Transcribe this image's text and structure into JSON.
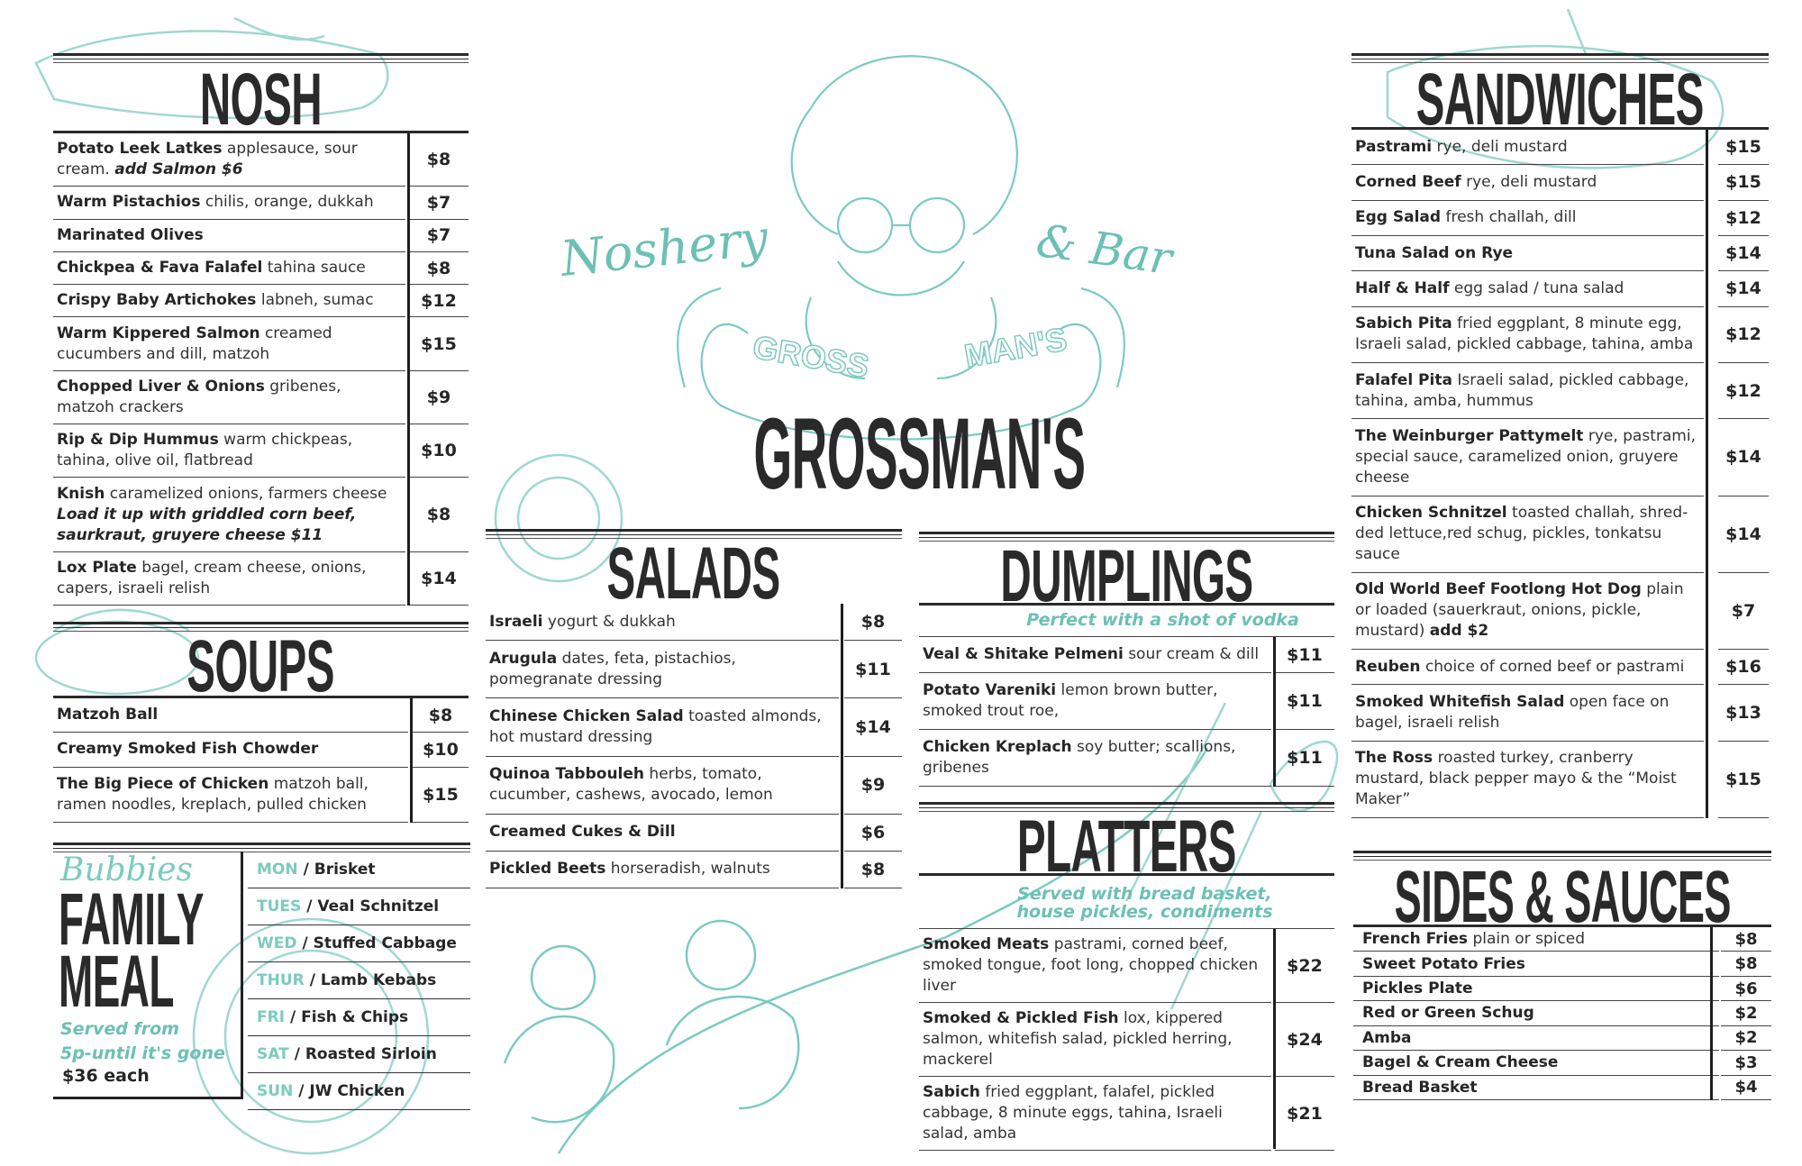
{
  "brand": {
    "name": "GROSSMAN'S",
    "script_left": "Noshery",
    "script_right": "& Bar",
    "plate_left": "GROSS",
    "plate_right": "MAN'S"
  },
  "colors": {
    "accent": "#6cc0b4",
    "text": "#262626",
    "rule": "#2a2a2a"
  },
  "nosh": {
    "title": "NOSH",
    "items": [
      {
        "name": "Potato Leek Latkes",
        "desc": "applesauce, sour cream.",
        "note": "add Salmon $6",
        "price": "$8"
      },
      {
        "name": "Warm Pistachios",
        "desc": "chilis, orange, dukkah",
        "price": "$7"
      },
      {
        "name": "Marinated Olives",
        "price": "$7"
      },
      {
        "name": "Chickpea & Fava Falafel",
        "desc": "tahina sauce",
        "price": "$8"
      },
      {
        "name": "Crispy Baby Artichokes",
        "desc": "labneh, sumac",
        "price": "$12"
      },
      {
        "name": "Warm Kippered Salmon",
        "desc": "creamed cucumbers and dill, matzoh",
        "price": "$15"
      },
      {
        "name": "Chopped Liver & Onions",
        "desc": "gribenes, matzoh crackers",
        "price": "$9"
      },
      {
        "name": "Rip & Dip Hummus",
        "desc": "warm chickpeas, tahina, olive oil, flatbread",
        "price": "$10"
      },
      {
        "name": "Knish",
        "desc": "caramelized onions, farmers cheese",
        "note": "Load it up with griddled corn beef, saurkraut, gruyere cheese $11",
        "price": "$8"
      },
      {
        "name": "Lox Plate",
        "desc": "bagel, cream cheese, onions, capers, israeli relish",
        "price": "$14"
      }
    ]
  },
  "soups": {
    "title": "SOUPS",
    "items": [
      {
        "name": "Matzoh Ball",
        "price": "$8"
      },
      {
        "name": "Creamy Smoked Fish Chowder",
        "price": "$10"
      },
      {
        "name": "The Big Piece of Chicken",
        "desc": "matzoh ball, ramen noodles, kreplach, pulled chicken",
        "price": "$15"
      }
    ]
  },
  "family_meal": {
    "script": "Bubbies",
    "title_line1": "FAMILY",
    "title_line2": "MEAL",
    "served_line1": "Served from",
    "served_line2": "5p-until  it's gone",
    "price": "$36 each",
    "days": [
      {
        "day": "MON",
        "dish": "/ Brisket"
      },
      {
        "day": "TUES",
        "dish": "/ Veal Schnitzel"
      },
      {
        "day": "WED",
        "dish": "/ Stuffed Cabbage"
      },
      {
        "day": "THUR",
        "dish": "/ Lamb Kebabs"
      },
      {
        "day": "FRI",
        "dish": "/ Fish & Chips"
      },
      {
        "day": "SAT",
        "dish": "/ Roasted Sirloin"
      },
      {
        "day": "SUN",
        "dish": "/ JW Chicken"
      }
    ]
  },
  "salads": {
    "title": "SALADS",
    "items": [
      {
        "name": "Israeli",
        "desc": "yogurt & dukkah",
        "price": "$8"
      },
      {
        "name": "Arugula",
        "desc": "dates, feta, pistachios, pomegranate dressing",
        "price": "$11"
      },
      {
        "name": "Chinese Chicken Salad",
        "desc": "toasted almonds, hot mustard dressing",
        "price": "$14"
      },
      {
        "name": "Quinoa Tabbouleh",
        "desc": "herbs, tomato, cucumber, cashews, avocado, lemon",
        "price": "$9"
      },
      {
        "name": "Creamed Cukes & Dill",
        "price": "$6"
      },
      {
        "name": "Pickled Beets",
        "desc": "horseradish, walnuts",
        "price": "$8"
      }
    ]
  },
  "dumplings": {
    "title": "DUMPLINGS",
    "subtitle": "Perfect with a shot of vodka",
    "items": [
      {
        "name": "Veal & Shitake Pelmeni",
        "desc": "sour cream & dill",
        "price": "$11"
      },
      {
        "name": "Potato Vareniki",
        "desc": "lemon brown butter, smoked trout roe,",
        "price": "$11"
      },
      {
        "name": "Chicken Kreplach",
        "desc": "soy butter; scallions, gribenes",
        "price": "$11"
      }
    ]
  },
  "platters": {
    "title": "PLATTERS",
    "subtitle_line1": "Served with bread basket,",
    "subtitle_line2": "house pickles, condiments",
    "items": [
      {
        "name": "Smoked Meats",
        "desc": "pastrami, corned beef, smoked tongue, foot long, chopped chicken liver",
        "price": "$22"
      },
      {
        "name": "Smoked & Pickled Fish",
        "desc": "lox, kippered salmon, whitefish salad, pickled herring, mackerel",
        "price": "$24"
      },
      {
        "name": "Sabich",
        "desc": "fried eggplant, falafel, pickled cabbage, 8 minute eggs, tahina, Israeli salad, amba",
        "price": "$21"
      }
    ]
  },
  "sandwiches": {
    "title": "SANDWICHES",
    "items": [
      {
        "name": "Pastrami",
        "desc": "rye, deli mustard",
        "price": "$15"
      },
      {
        "name": "Corned Beef",
        "desc": "rye, deli mustard",
        "price": "$15"
      },
      {
        "name": "Egg Salad",
        "desc": "fresh challah, dill",
        "price": "$12"
      },
      {
        "name": "Tuna Salad on Rye",
        "price": "$14"
      },
      {
        "name": "Half & Half",
        "desc": "egg salad / tuna salad",
        "price": "$14"
      },
      {
        "name": "Sabich Pita",
        "desc": "fried eggplant, 8 minute egg, Israeli salad, pickled cabbage, tahina, amba",
        "price": "$12"
      },
      {
        "name": "Falafel Pita",
        "desc": "Israeli salad, pickled cabbage, tahina, amba, hummus",
        "price": "$12"
      },
      {
        "name": "The Weinburger Pattymelt",
        "desc": "rye, pastrami, special sauce, caramelized  onion, gruyere cheese",
        "price": "$14"
      },
      {
        "name": "Chicken Schnitzel",
        "desc": "toasted challah, shred-ded lettuce,red schug, pickles, tonkatsu sauce",
        "price": "$14"
      },
      {
        "name": "Old World Beef Footlong Hot Dog",
        "desc": "plain or loaded (sauerkraut, onions, pickle, mustard)",
        "note": "add $2",
        "price": "$7"
      },
      {
        "name": "Reuben",
        "desc": "choice of corned beef or pastrami",
        "price": "$16"
      },
      {
        "name": "Smoked Whitefish Salad",
        "desc": "open face on bagel, israeli relish",
        "price": "$13"
      },
      {
        "name": "The Ross",
        "desc": "roasted turkey, cranberry mustard, black pepper mayo & the “Moist Maker”",
        "price": "$15"
      }
    ]
  },
  "sides": {
    "title": "SIDES & SAUCES",
    "items": [
      {
        "name": "French Fries",
        "desc": "plain or spiced",
        "price": "$8"
      },
      {
        "name": "Sweet Potato Fries",
        "price": "$8"
      },
      {
        "name": "Pickles Plate",
        "price": "$6"
      },
      {
        "name": "Red or Green Schug",
        "price": "$2"
      },
      {
        "name": "Amba",
        "price": "$2"
      },
      {
        "name": "Bagel & Cream Cheese",
        "price": "$3"
      },
      {
        "name": "Bread Basket",
        "price": "$4"
      }
    ]
  }
}
